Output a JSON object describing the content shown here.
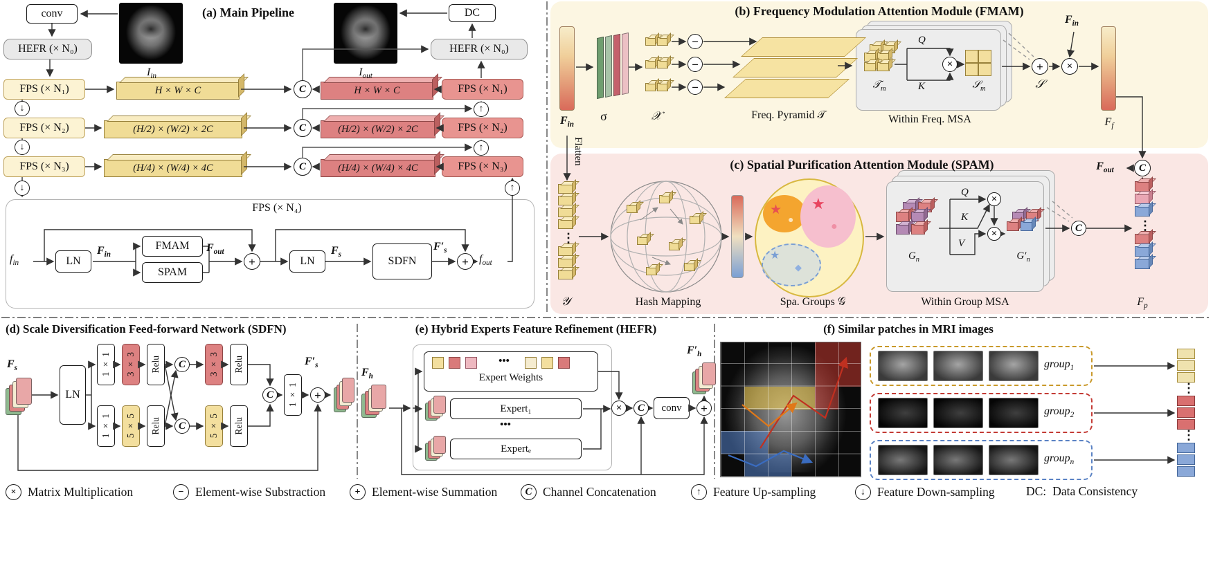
{
  "ops": {
    "mul": "×",
    "sub": "−",
    "add": "+",
    "concat": "C",
    "up": "↑",
    "down": "↓",
    "vdots": "⋮",
    "hdots": "•••",
    "star": "★",
    "dot": "●",
    "diamond": "◆"
  },
  "colors": {
    "encoder_fill": "#fcf3d3",
    "decoder_fill": "#e89490",
    "slab_yellow": "#f3df9e",
    "slab_red": "#dd8181",
    "fmam_bg": "#fcf6e2",
    "spam_bg": "#fae7e4",
    "group1_border": "#c9992a",
    "group2_border": "#c43b35",
    "groupn_border": "#5a82c4"
  },
  "panel_a": {
    "title": "(a) Main Pipeline",
    "conv": "conv",
    "dc": "DC",
    "hefr": "HEFR (× N₀)",
    "fps1": "FPS (× N₁)",
    "fps2": "FPS (× N₂)",
    "fps3": "FPS (× N₃)",
    "fps4": "FPS (× N₄)",
    "i_in": "I_in",
    "i_out": "I_out",
    "feat1": "H × W × C",
    "feat2": "(H/2) × (W/2) × 2C",
    "feat3": "(H/4) × (W/4) × 4C",
    "f_in": "f_in",
    "ln": "LN",
    "F_in": "F_in",
    "fmam": "FMAM",
    "spam": "SPAM",
    "F_out": "F_out",
    "F_s": "F_s",
    "sdfn": "SDFN",
    "F_s_prime": "F′_s",
    "f_out": "f_out"
  },
  "panel_b": {
    "title": "(b) Frequency Modulation Attention Module (FMAM)",
    "F_in": "F_in",
    "sigma": "σ",
    "chi": "𝒳",
    "pyramid": "Freq. Pyramid 𝒯",
    "T_m": "𝒯_m",
    "q": "Q",
    "k": "K",
    "S_m": "𝒮_m",
    "msa": "Within Freq. MSA",
    "S": "𝒮",
    "F_in_top": "F_in",
    "F_f": "F_f"
  },
  "panel_c": {
    "title": "(c) Spatial Purification Attention Module (SPAM)",
    "flatten": "Flatten",
    "y": "𝒴",
    "hash": "Hash Mapping",
    "groups": "Spa. Groups 𝒢",
    "G_n": "G_n",
    "q": "Q",
    "k": "K",
    "v": "V",
    "G_n_prime": "G′_n",
    "msa": "Within Group MSA",
    "F_p": "F_p",
    "F_out": "F_out"
  },
  "panel_d": {
    "title": "(d) Scale Diversification Feed-forward Network (SDFN)",
    "F_s": "F_s",
    "ln": "LN",
    "c11": "1 × 1",
    "c33": "3 × 3",
    "c55": "5 × 5",
    "relu": "Relu",
    "F_s_prime": "F′_s"
  },
  "panel_e": {
    "title": "(e) Hybrid Experts Feature Refinement (HEFR)",
    "F_h": "F_h",
    "weights": "Expert Weights",
    "expert1": "Expert₁",
    "expert_e": "Expertₑ",
    "conv": "conv",
    "F_h_prime": "F′_h"
  },
  "panel_f": {
    "title": "(f) Similar patches in MRI images",
    "group1": "group_1",
    "group2": "group_2",
    "groupn": "group_n"
  },
  "legend": {
    "items": [
      {
        "op": "mul",
        "label": "Matrix Multiplication"
      },
      {
        "op": "sub",
        "label": "Element-wise Substraction"
      },
      {
        "op": "add",
        "label": "Element-wise Summation"
      },
      {
        "op": "concat",
        "label": "Channel Concatenation"
      },
      {
        "op": "up",
        "label": "Feature Up-sampling"
      },
      {
        "op": "down",
        "label": "Feature Down-sampling"
      },
      {
        "prefix": "DC:",
        "label": "Data Consistency"
      }
    ]
  }
}
